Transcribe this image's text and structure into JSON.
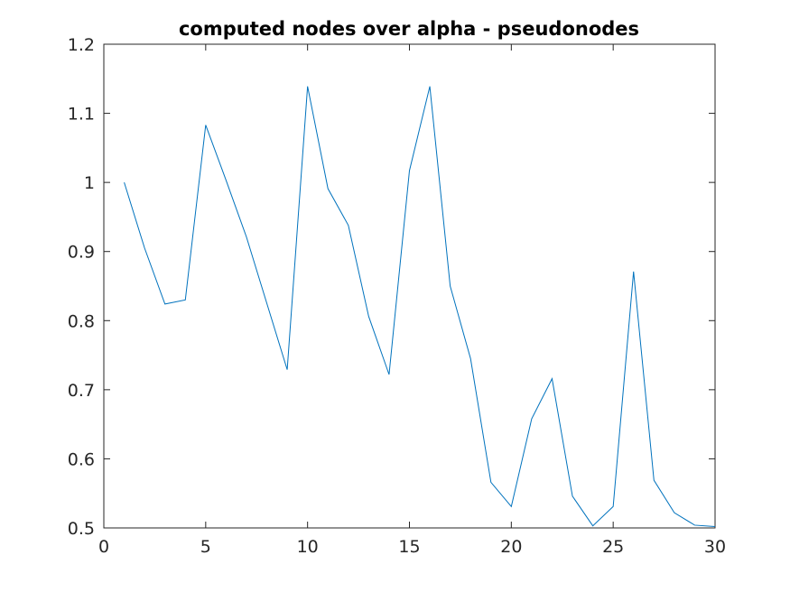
{
  "chart_data": {
    "type": "line",
    "title": "computed nodes over alpha - pseudonodes",
    "xlabel": "",
    "ylabel": "",
    "xlim": [
      0,
      30
    ],
    "ylim": [
      0.5,
      1.2
    ],
    "xticks": [
      "0",
      "5",
      "10",
      "15",
      "20",
      "25",
      "30"
    ],
    "yticks": [
      "0.5",
      "0.6",
      "0.7",
      "0.8",
      "0.9",
      "1",
      "1.1",
      "1.2"
    ],
    "grid": false,
    "legend": "none",
    "series": [
      {
        "color": "#0072BD",
        "x": [
          1,
          2,
          3,
          4,
          5,
          6,
          7,
          8,
          9,
          10,
          11,
          12,
          13,
          14,
          15,
          16,
          17,
          18,
          19,
          20,
          21,
          22,
          23,
          24,
          25,
          26,
          27,
          28,
          29,
          30
        ],
        "y": [
          1.0,
          0.905,
          0.824,
          0.83,
          1.083,
          1.003,
          0.921,
          0.825,
          0.729,
          1.139,
          0.991,
          0.938,
          0.806,
          0.722,
          1.017,
          1.139,
          0.85,
          0.745,
          0.566,
          0.531,
          0.658,
          0.716,
          0.546,
          0.503,
          0.531,
          0.871,
          0.569,
          0.522,
          0.504,
          0.502
        ]
      }
    ]
  }
}
